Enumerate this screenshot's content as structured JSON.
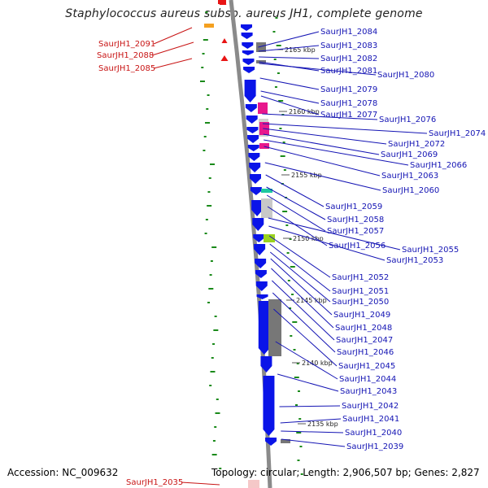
{
  "title": "Staphylococcus aureus subsp. aureus JH1, complete genome",
  "accession": "Accession: NC_009632",
  "stats": "Topology: circular; Length: 2,906,507 bp; Genes: 2,827",
  "colors": {
    "cds": "#0a14e8",
    "backbone": "#888888",
    "gc_dots": "#1a8a1a",
    "forward_label": "#c81414",
    "reverse_label": "#1414b4",
    "feature_gray": "#777777",
    "feature_pink": "#e8188c",
    "feature_teal": "#1ec8a0",
    "feature_lime": "#9ad21e",
    "feature_orange": "#f4a020",
    "feature_red": "#e81414"
  },
  "tick_labels": [
    "2165 kbp",
    "2160 kbp",
    "2155 kbp",
    "2150 kbp",
    "2145 kbp",
    "2140 kbp",
    "2135 kbp"
  ],
  "forward_labels": [
    "SaurJH1_2091",
    "SaurJH1_2088",
    "SaurJH1_2085",
    "SaurJH1_2035"
  ],
  "reverse_labels": [
    "SaurJH1_2084",
    "SaurJH1_2083",
    "SaurJH1_2082",
    "SaurJH1_2081",
    "SaurJH1_2080",
    "SaurJH1_2079",
    "SaurJH1_2078",
    "SaurJH1_2077",
    "SaurJH1_2076",
    "SaurJH1_2074",
    "SaurJH1_2072",
    "SaurJH1_2069",
    "SaurJH1_2066",
    "SaurJH1_2063",
    "SaurJH1_2060",
    "SaurJH1_2059",
    "SaurJH1_2058",
    "SaurJH1_2057",
    "SaurJH1_2056",
    "SaurJH1_2055",
    "SaurJH1_2053",
    "SaurJH1_2052",
    "SaurJH1_2051",
    "SaurJH1_2050",
    "SaurJH1_2049",
    "SaurJH1_2048",
    "SaurJH1_2047",
    "SaurJH1_2046",
    "SaurJH1_2045",
    "SaurJH1_2044",
    "SaurJH1_2043",
    "SaurJH1_2042",
    "SaurJH1_2041",
    "SaurJH1_2040",
    "SaurJH1_2039"
  ]
}
